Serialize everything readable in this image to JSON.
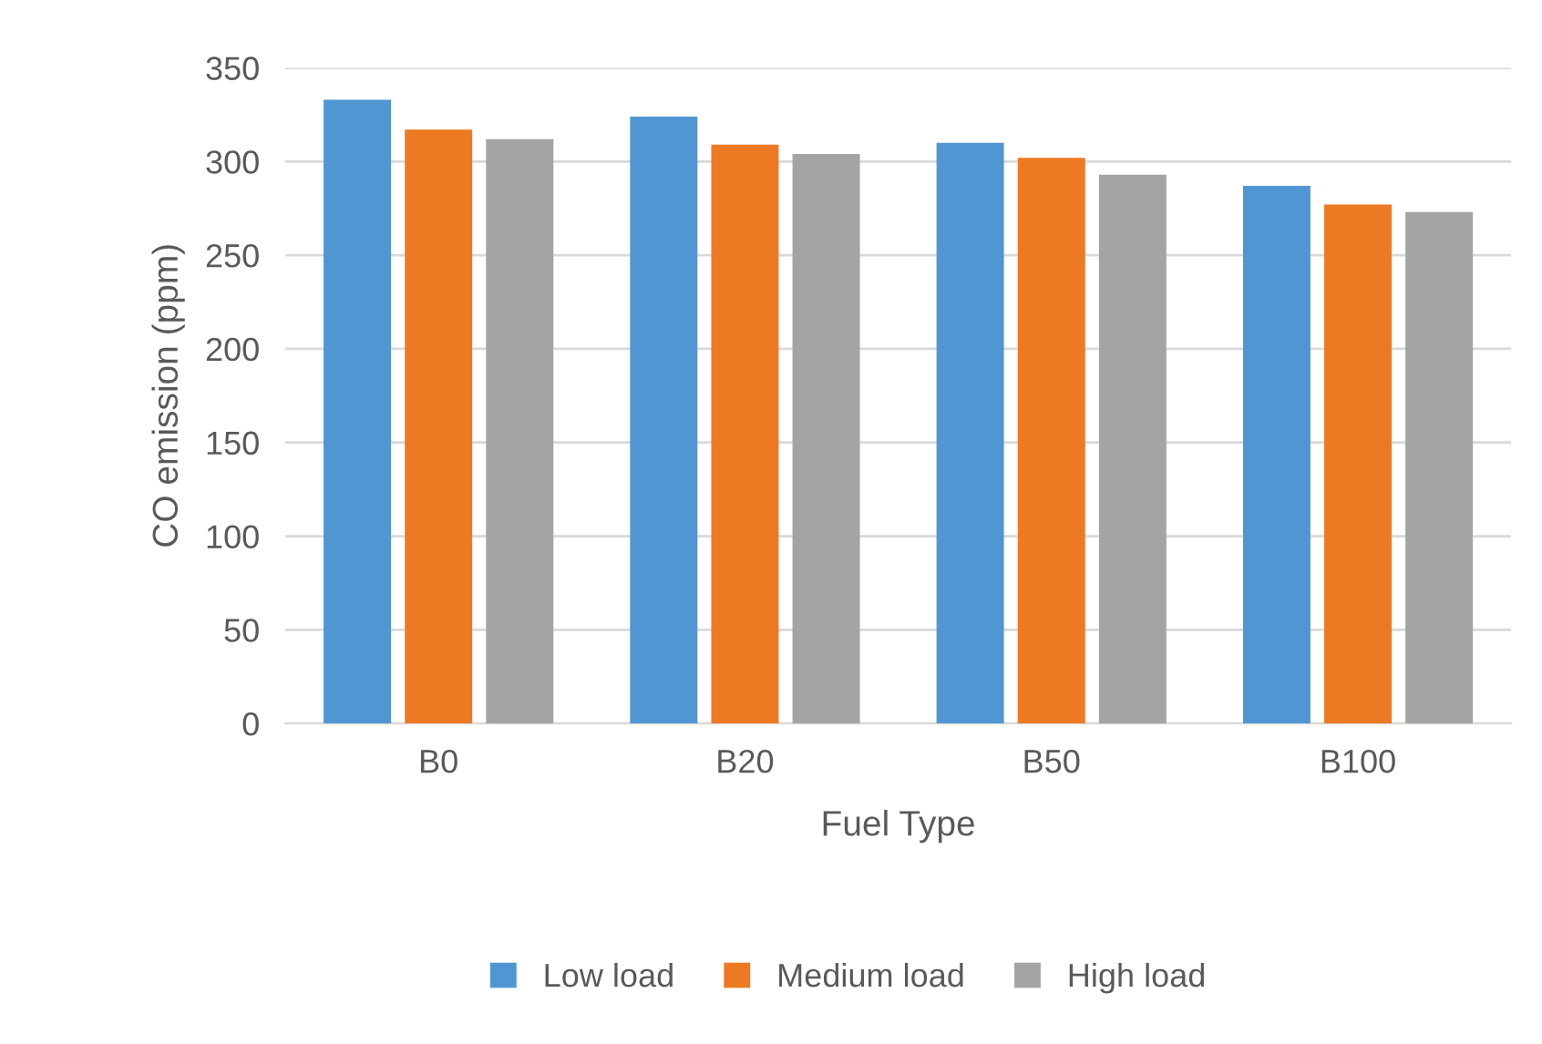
{
  "chart_data": {
    "type": "bar",
    "xlabel": "Fuel Type",
    "ylabel": "CO emission (ppm)",
    "categories": [
      "B0",
      "B20",
      "B50",
      "B100"
    ],
    "series": [
      {
        "name": "Low load",
        "color": "#5096d2",
        "values": [
          333,
          324,
          310,
          287
        ]
      },
      {
        "name": "Medium load",
        "color": "#ed7a23",
        "values": [
          317,
          309,
          302,
          277
        ]
      },
      {
        "name": "High load",
        "color": "#a3a4a3",
        "values": [
          312,
          304,
          293,
          273
        ]
      }
    ],
    "ylim": [
      0,
      350
    ],
    "yticks": [
      0,
      50,
      100,
      150,
      200,
      250,
      300,
      350
    ],
    "grid": "y",
    "legend": "bottom"
  }
}
